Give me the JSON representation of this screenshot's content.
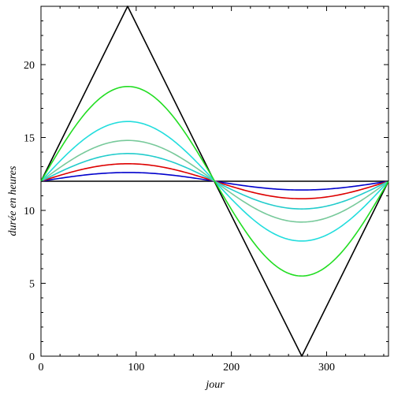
{
  "chart_data": {
    "type": "line",
    "title": "",
    "xlabel": "jour",
    "ylabel": "durée en heures",
    "xlim": [
      0,
      365
    ],
    "ylim": [
      0,
      24
    ],
    "grid": false,
    "legend": "none",
    "x_ticks": [
      0,
      100,
      200,
      300
    ],
    "y_ticks": [
      0,
      5,
      10,
      15,
      20
    ],
    "x_tick_labels": [
      "0",
      "100",
      "200",
      "300"
    ],
    "y_tick_labels": [
      "0",
      "5",
      "10",
      "15",
      "20"
    ],
    "series": [
      {
        "color": "#000000",
        "shape": "triangle",
        "x": [
          0,
          91,
          182,
          274,
          365
        ],
        "y": [
          12,
          24,
          12,
          0,
          12
        ]
      },
      {
        "color": "#000000",
        "shape": "flat",
        "amplitude": 0,
        "x": [
          0,
          365
        ],
        "y": [
          12,
          12
        ]
      },
      {
        "color": "#0000cc",
        "shape": "sine",
        "amplitude": 0.6,
        "peak": [
          91,
          12.6
        ],
        "trough": [
          274,
          11.4
        ]
      },
      {
        "color": "#dd0000",
        "shape": "sine",
        "amplitude": 1.2,
        "peak": [
          91,
          13.2
        ],
        "trough": [
          274,
          10.8
        ]
      },
      {
        "color": "#22cccc",
        "shape": "sine",
        "amplitude": 1.9,
        "peak": [
          91,
          13.9
        ],
        "trough": [
          274,
          10.1
        ]
      },
      {
        "color": "#77c99a",
        "shape": "sine",
        "amplitude": 2.8,
        "peak": [
          91,
          14.8
        ],
        "trough": [
          274,
          9.2
        ]
      },
      {
        "color": "#22dddd",
        "shape": "sine",
        "amplitude": 4.1,
        "peak": [
          91,
          16.1
        ],
        "trough": [
          274,
          7.9
        ]
      },
      {
        "color": "#22dd22",
        "shape": "sine",
        "amplitude": 6.5,
        "peak": [
          91,
          18.5
        ],
        "trough": [
          274,
          5.5
        ]
      }
    ]
  }
}
